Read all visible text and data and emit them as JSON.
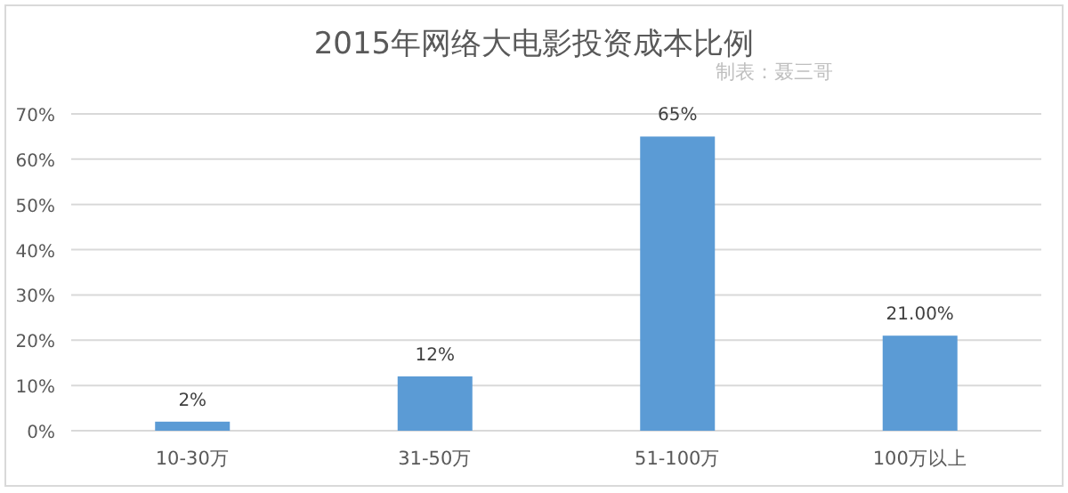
{
  "chart_data": {
    "type": "bar",
    "title": "2015年网络大电影投资成本比例",
    "annotations": [
      "制表：聂三哥"
    ],
    "categories": [
      "10-30万",
      "31-50万",
      "51-100万",
      "100万以上"
    ],
    "values": [
      2,
      12,
      65,
      21
    ],
    "color": "#5b9bd5",
    "value_labels": [
      "2%",
      "12%",
      "65%",
      "21.00%"
    ],
    "ylim": [
      0,
      70
    ],
    "yticks": [
      {
        "value": 0,
        "label": "0%"
      },
      {
        "value": 10,
        "label": "10%"
      },
      {
        "value": 20,
        "label": "20%"
      },
      {
        "value": 30,
        "label": "30%"
      },
      {
        "value": 40,
        "label": "40%"
      },
      {
        "value": 50,
        "label": "50%"
      },
      {
        "value": 60,
        "label": "60%"
      },
      {
        "value": 70,
        "label": "70%"
      }
    ],
    "grid": "y"
  }
}
